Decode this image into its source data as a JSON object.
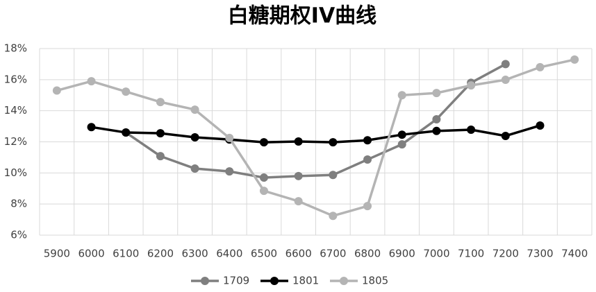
{
  "chart_data": {
    "type": "line",
    "title": "白糖期权IV曲线",
    "categories": [
      "5900",
      "6000",
      "6100",
      "6200",
      "6300",
      "6400",
      "6500",
      "6600",
      "6700",
      "6800",
      "6900",
      "7000",
      "7100",
      "7200",
      "7300",
      "7400"
    ],
    "series": [
      {
        "name": "1709",
        "color": "#7f7f7f",
        "values": [
          null,
          null,
          12.6,
          11.08,
          10.28,
          10.1,
          9.7,
          9.8,
          9.87,
          10.86,
          11.84,
          13.45,
          15.8,
          17.0,
          null,
          null
        ]
      },
      {
        "name": "1801",
        "color": "#000000",
        "values": [
          null,
          12.95,
          12.6,
          12.55,
          12.29,
          12.15,
          11.97,
          12.02,
          11.97,
          12.1,
          12.46,
          12.7,
          12.78,
          12.38,
          13.05,
          null
        ]
      },
      {
        "name": "1805",
        "color": "#b4b4b4",
        "values": [
          15.3,
          15.9,
          15.23,
          14.56,
          14.07,
          12.25,
          8.85,
          8.18,
          7.24,
          7.87,
          15.0,
          15.14,
          15.63,
          15.99,
          16.8,
          17.29
        ]
      }
    ],
    "ylim": [
      6,
      18
    ],
    "yticks": [
      {
        "value": 6,
        "label": "6%"
      },
      {
        "value": 8,
        "label": "8%"
      },
      {
        "value": 10,
        "label": "10%"
      },
      {
        "value": 12,
        "label": "12%"
      },
      {
        "value": 14,
        "label": "14%"
      },
      {
        "value": 16,
        "label": "16%"
      },
      {
        "value": 18,
        "label": "18%"
      }
    ],
    "grid": true,
    "legend": "bottom"
  }
}
